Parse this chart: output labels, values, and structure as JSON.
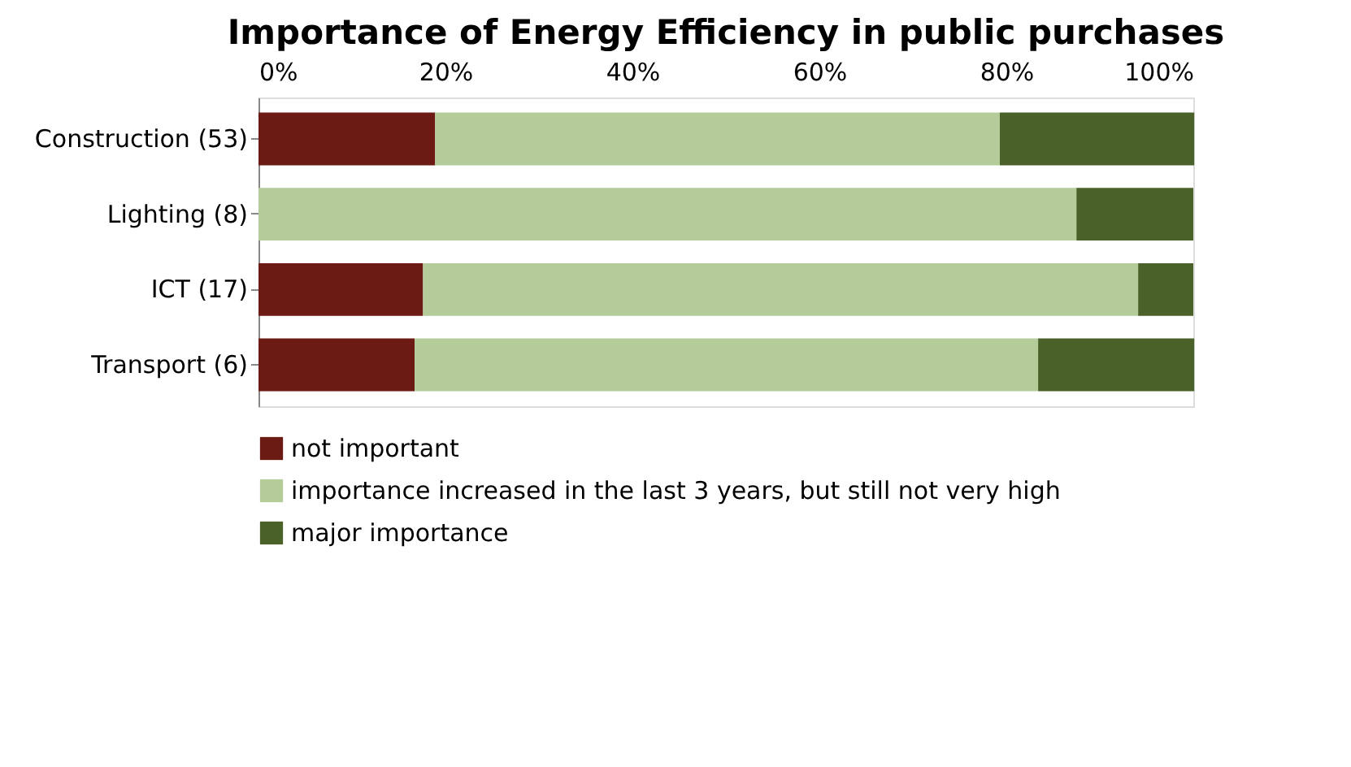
{
  "chart_data": {
    "type": "bar",
    "orientation": "horizontal",
    "stacked": true,
    "title": "Importance of Energy Efficiency in public purchases",
    "categories": [
      "Construction (53)",
      "Lighting (8)",
      "ICT (17)",
      "Transport (6)"
    ],
    "series": [
      {
        "name": "not important",
        "color": "#6b1a14",
        "values": [
          18.9,
          0,
          17.6,
          16.7
        ]
      },
      {
        "name": "importance increased in the last 3 years, but still not very high",
        "color": "#b3cc99",
        "values": [
          60.4,
          87.5,
          76.5,
          66.7
        ]
      },
      {
        "name": "major importance",
        "color": "#4a6129",
        "values": [
          20.8,
          12.5,
          5.9,
          16.7
        ]
      }
    ],
    "xlim": [
      0,
      100
    ],
    "xticks": [
      {
        "value": 0,
        "label": "0%"
      },
      {
        "value": 20,
        "label": "20%"
      },
      {
        "value": 40,
        "label": "40%"
      },
      {
        "value": 60,
        "label": "60%"
      },
      {
        "value": 80,
        "label": "80%"
      },
      {
        "value": 100,
        "label": "100%"
      }
    ],
    "grid": false,
    "legend": "bottom"
  }
}
